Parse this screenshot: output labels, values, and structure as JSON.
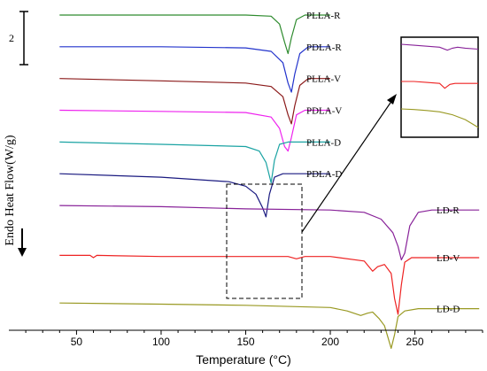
{
  "chart_data": {
    "type": "line",
    "xlabel": "Temperature (°C)",
    "ylabel": "Endo Heat Flow(W/g)",
    "xlim": [
      10,
      290
    ],
    "x_ticks": [
      50,
      100,
      150,
      200,
      250
    ],
    "scale_bar_label": "2",
    "series": [
      {
        "name": "PLLA-R",
        "color": "#2e8b2e",
        "x": [
          40,
          100,
          150,
          165,
          170,
          173,
          175,
          177,
          180,
          185,
          200
        ],
        "offset": 13.2,
        "values": [
          0,
          0,
          0,
          -0.05,
          -0.4,
          -1.2,
          -1.7,
          -1.0,
          -0.2,
          0,
          0
        ]
      },
      {
        "name": "PDLA-R",
        "color": "#2233cc",
        "x": [
          40,
          100,
          150,
          165,
          172,
          175,
          177,
          179,
          182,
          187,
          200
        ],
        "offset": 11.8,
        "values": [
          0,
          0,
          -0.05,
          -0.2,
          -0.7,
          -1.6,
          -2.0,
          -1.2,
          -0.3,
          0,
          0
        ]
      },
      {
        "name": "PLLA-V",
        "color": "#8b1a1a",
        "x": [
          40,
          100,
          150,
          165,
          172,
          175,
          177,
          179,
          182,
          187,
          200
        ],
        "offset": 10.4,
        "values": [
          0,
          -0.1,
          -0.2,
          -0.35,
          -0.8,
          -1.6,
          -2.0,
          -1.2,
          -0.3,
          0,
          0
        ]
      },
      {
        "name": "PDLA-V",
        "color": "#ee22ee",
        "x": [
          40,
          100,
          150,
          165,
          170,
          173,
          175,
          177,
          180,
          185,
          200
        ],
        "offset": 9.0,
        "values": [
          0,
          -0.05,
          -0.1,
          -0.3,
          -0.8,
          -1.6,
          -1.8,
          -1.2,
          -0.2,
          0,
          0
        ]
      },
      {
        "name": "PLLA-D",
        "color": "#1aa3a3",
        "x": [
          40,
          100,
          150,
          158,
          162,
          164,
          165,
          167,
          170,
          175,
          200
        ],
        "offset": 7.6,
        "values": [
          0,
          -0.1,
          -0.2,
          -0.4,
          -0.9,
          -1.5,
          -1.8,
          -0.8,
          -0.1,
          0,
          0
        ]
      },
      {
        "name": "PDLA-D",
        "color": "#1a1a80",
        "x": [
          40,
          100,
          140,
          150,
          156,
          160,
          162,
          164,
          167,
          172,
          200
        ],
        "offset": 6.2,
        "values": [
          0,
          -0.15,
          -0.35,
          -0.55,
          -0.9,
          -1.5,
          -1.9,
          -0.9,
          -0.15,
          0,
          0
        ]
      },
      {
        "name": "LD-R",
        "color": "#882299",
        "x": [
          40,
          100,
          150,
          200,
          220,
          230,
          237,
          240,
          242,
          244,
          247,
          252,
          260,
          288
        ],
        "offset": 4.8,
        "values": [
          0,
          -0.05,
          -0.15,
          -0.2,
          -0.3,
          -0.6,
          -1.2,
          -1.8,
          -2.4,
          -2.1,
          -0.9,
          -0.3,
          -0.2,
          -0.2
        ]
      },
      {
        "name": "LD-V",
        "color": "#ee2222",
        "x": [
          40,
          58,
          60,
          62,
          100,
          150,
          175,
          180,
          185,
          200,
          220,
          225,
          228,
          232,
          236,
          238,
          240,
          242,
          244,
          248,
          288
        ],
        "offset": 2.6,
        "values": [
          0,
          0,
          -0.1,
          0,
          -0.05,
          -0.05,
          -0.05,
          -0.15,
          -0.05,
          -0.05,
          -0.25,
          -0.7,
          -0.5,
          -0.4,
          -0.8,
          -1.9,
          -2.6,
          -1.3,
          -0.3,
          -0.1,
          -0.1
        ]
      },
      {
        "name": "LD-D",
        "color": "#999922",
        "x": [
          40,
          100,
          150,
          200,
          210,
          218,
          222,
          225,
          229,
          232,
          234,
          236,
          238,
          240,
          244,
          252,
          288
        ],
        "offset": 0.5,
        "values": [
          0,
          -0.05,
          -0.1,
          -0.2,
          -0.35,
          -0.55,
          -0.45,
          -0.4,
          -0.7,
          -1.0,
          -1.5,
          -2.0,
          -1.4,
          -0.6,
          -0.35,
          -0.25,
          -0.25
        ]
      }
    ],
    "inset": {
      "xlim": [
        175,
        205
      ],
      "series": [
        {
          "name": "LD-R",
          "x": [
            175,
            180,
            185,
            190,
            193,
            195,
            197,
            200,
            205
          ],
          "values": [
            0,
            -0.05,
            -0.1,
            -0.15,
            -0.3,
            -0.2,
            -0.15,
            -0.2,
            -0.25
          ]
        },
        {
          "name": "LD-V",
          "x": [
            175,
            180,
            185,
            190,
            192,
            194,
            196,
            200,
            205
          ],
          "values": [
            0,
            0,
            -0.05,
            -0.1,
            -0.35,
            -0.15,
            -0.1,
            -0.1,
            -0.1
          ]
        },
        {
          "name": "LD-D",
          "x": [
            175,
            180,
            185,
            190,
            195,
            200,
            205
          ],
          "values": [
            0,
            -0.03,
            -0.08,
            -0.15,
            -0.3,
            -0.55,
            -0.95
          ]
        }
      ]
    }
  }
}
